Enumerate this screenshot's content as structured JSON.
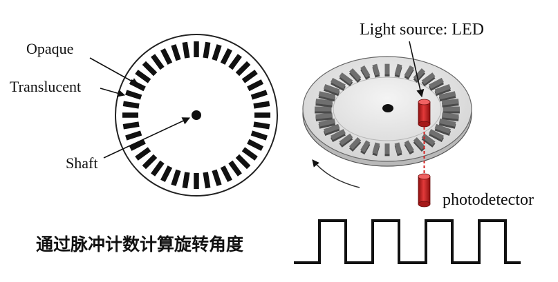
{
  "left_disk": {
    "slot_count": 40,
    "labels": {
      "opaque": "Opaque",
      "translucent": "Translucent",
      "shaft": "Shaft"
    }
  },
  "right_disk": {
    "slot_count": 36,
    "labels": {
      "light_source": "Light source: LED",
      "photodetector": "photodetector"
    }
  },
  "pulse_train": {
    "pulse_count": 4
  },
  "caption": "通过脉冲计数计算旋转角度",
  "colors": {
    "ink": "#111111",
    "led_red": "#cc1f1f",
    "disk_grey": "#e6e6e6",
    "slot_grey": "#6f6f6f"
  }
}
